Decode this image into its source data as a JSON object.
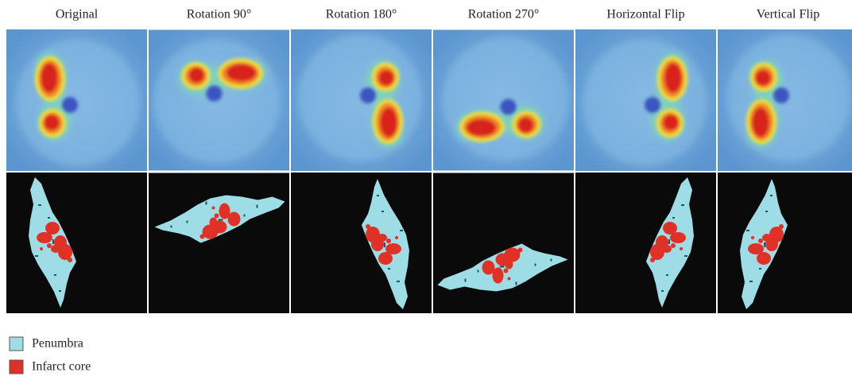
{
  "columns": [
    {
      "title": "Original"
    },
    {
      "title": "Rotation 90°"
    },
    {
      "title": "Rotation 180°"
    },
    {
      "title": "Rotation 270°"
    },
    {
      "title": "Horizontal Flip"
    },
    {
      "title": "Vertical Flip"
    }
  ],
  "legend": [
    {
      "label": "Penumbra"
    },
    {
      "label": "Infarct core"
    }
  ]
}
